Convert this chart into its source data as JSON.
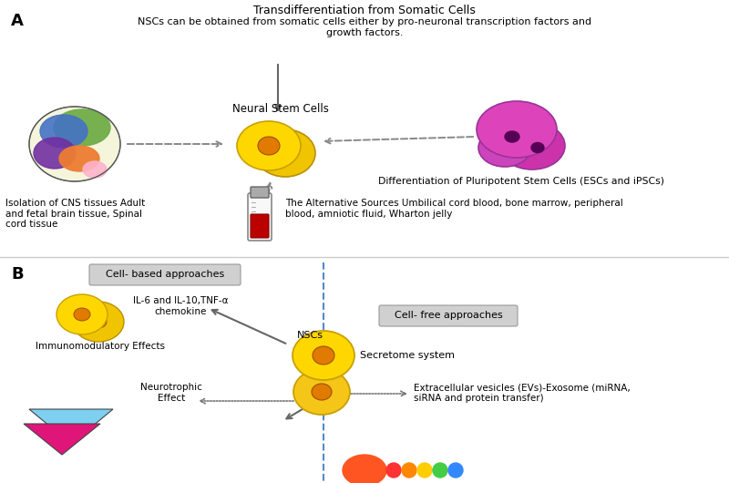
{
  "bg_color": "#ffffff",
  "fig_width": 8.0,
  "fig_height": 5.3,
  "panel_a": {
    "title_main": "Transdifferentiation from Somatic Cells",
    "title_sub": "NSCs can be obtained from somatic cells either by pro-neuronal transcription factors and\ngrowth factors.",
    "label": "A",
    "neural_stem_cells_label": "Neural Stem Cells",
    "differentiation_label": "Differentiation of Pluripotent Stem Cells (ESCs and iPSCs)",
    "isolation_label": "Isolation of CNS tissues Adult\nand fetal brain tissue, Spinal\ncord tissue",
    "alt_sources_label": "The Alternative Sources Umbilical cord blood, bone marrow, peripheral\nblood, amniotic fluid, Wharton jelly"
  },
  "panel_b": {
    "label": "B",
    "cell_based_label": "Cell- based approaches",
    "il_label": "IL-6 and IL-10,TNF-α\nchemokine",
    "immunomodulatory_label": "Immunomodulatory Effects",
    "neurotrophic_label": "Neurotrophic\nEffect",
    "nscs_label": "NSCs",
    "cell_free_label": "Cell- free approaches",
    "secretome_label": "Secretome system",
    "ev_label": "Extracellular vesicles (EVs)-Exosome (miRNA,\nsiRNA and protein transfer)"
  },
  "colors": {
    "brain_green": "#70ad47",
    "brain_blue": "#4472c4",
    "brain_purple": "#7030a0",
    "brain_orange": "#ed7d31",
    "brain_pink": "#ffb3cc",
    "nsc_yellow": "#ffd700",
    "nsc_yellow2": "#f5c518",
    "nsc_orange": "#e07b00",
    "pluripotent_pink": "#cc44bb",
    "pluripotent_dark": "#880088",
    "blood_red": "#cc0000",
    "arrow_gray": "#888888",
    "box_gray_bg": "#d0d0d0",
    "box_gray_ec": "#999999",
    "triangle_blue": "#7ecff0",
    "triangle_magenta": "#e0157a",
    "dashed_blue": "#5588cc",
    "sep_line": "#cccccc"
  }
}
